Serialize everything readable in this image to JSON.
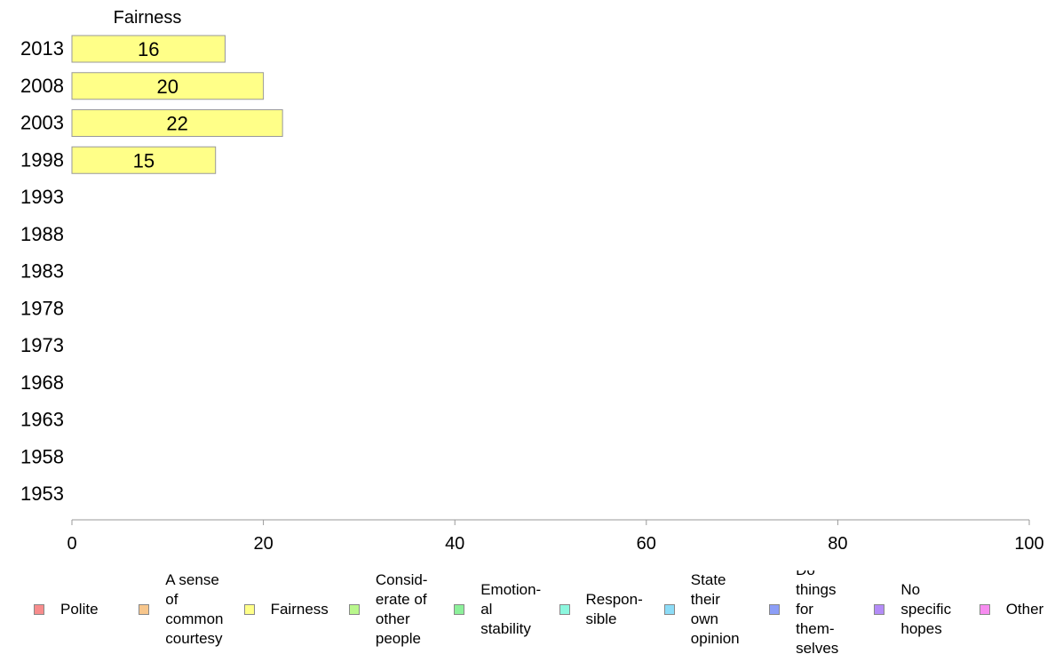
{
  "chart_data": {
    "type": "bar",
    "orientation": "horizontal",
    "title": "Fairness",
    "categories": [
      "2013",
      "2008",
      "2003",
      "1998",
      "1993",
      "1988",
      "1983",
      "1978",
      "1973",
      "1968",
      "1963",
      "1958",
      "1953"
    ],
    "series": [
      {
        "name": "Fairness",
        "values": [
          16,
          20,
          22,
          15,
          null,
          null,
          null,
          null,
          null,
          null,
          null,
          null,
          null
        ],
        "color": "#ffff88"
      }
    ],
    "xlim": [
      0,
      100
    ],
    "xticks": [
      "0",
      "20",
      "40",
      "60",
      "80",
      "100"
    ],
    "xlabel": "",
    "ylabel": "",
    "grid": false,
    "legend_position": "bottom"
  },
  "legend": [
    {
      "label": "Polite",
      "color": "#f78c8c"
    },
    {
      "label": "A sense\nof\ncommon\ncourtesy",
      "color": "#f7c68c"
    },
    {
      "label": "Fairness",
      "color": "#ffff88"
    },
    {
      "label": "Consid-\nerate of\nother\npeople",
      "color": "#b9f78c"
    },
    {
      "label": "Emotion-\nal\nstability",
      "color": "#8cf09a"
    },
    {
      "label": "Respon-\nsible",
      "color": "#8cf7de"
    },
    {
      "label": "State\ntheir\nown\nopinion",
      "color": "#8cdcf7"
    },
    {
      "label": "Do\nthings\nfor\nthem-\nselves",
      "color": "#8c9ef7"
    },
    {
      "label": "No\nspecific\nhopes",
      "color": "#b38cf7"
    },
    {
      "label": "Other",
      "color": "#f78cf0"
    }
  ]
}
